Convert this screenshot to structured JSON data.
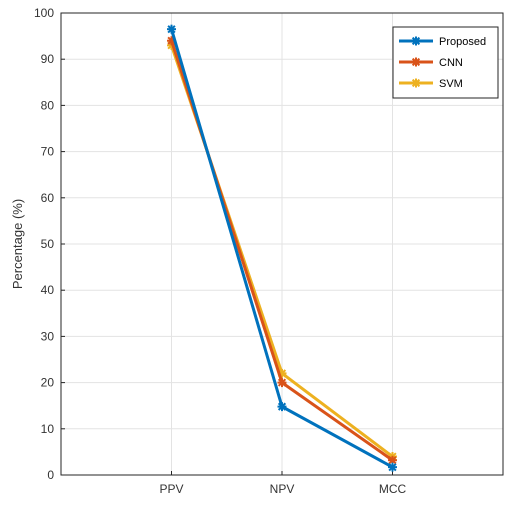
{
  "chart_data": {
    "type": "line",
    "title": "",
    "xlabel": "",
    "ylabel": "Percentage (%)",
    "categories": [
      "PPV",
      "NPV",
      "MCC"
    ],
    "ylim": [
      0,
      100
    ],
    "yticks": [
      0,
      10,
      20,
      30,
      40,
      50,
      60,
      70,
      80,
      90,
      100
    ],
    "grid": true,
    "legend_position": "top-right",
    "series": [
      {
        "name": "Proposed",
        "values": [
          96.5,
          14.8,
          1.7
        ],
        "color": "#0072BD",
        "marker": "asterisk"
      },
      {
        "name": "CNN",
        "values": [
          94.0,
          20.0,
          3.2
        ],
        "color": "#D95319",
        "marker": "asterisk"
      },
      {
        "name": "SVM",
        "values": [
          93.0,
          22.0,
          4.0
        ],
        "color": "#EDB120",
        "marker": "asterisk"
      }
    ]
  }
}
